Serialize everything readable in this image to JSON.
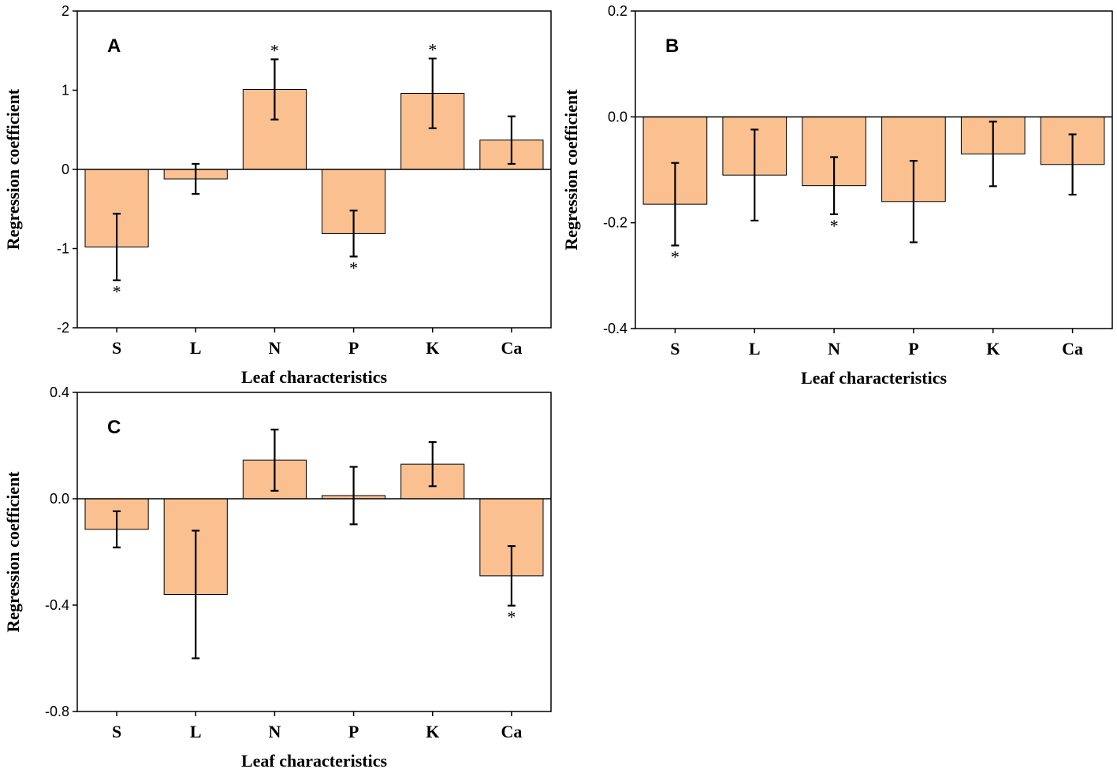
{
  "bar_color": "#fac090",
  "chart_data": [
    {
      "type": "bar",
      "panel": "A",
      "categories": [
        "S",
        "L",
        "N",
        "P",
        "K",
        "Ca"
      ],
      "values": [
        -0.98,
        -0.12,
        1.01,
        -0.81,
        0.96,
        0.37
      ],
      "errors": [
        0.42,
        0.19,
        0.38,
        0.29,
        0.44,
        0.3
      ],
      "significant": [
        true,
        false,
        true,
        true,
        true,
        false
      ],
      "xlabel": "Leaf characteristics",
      "ylabel": "Regression coefficient",
      "ylim": [
        -2,
        2
      ],
      "yticks": [
        -2,
        -1,
        0,
        1,
        2
      ],
      "ytick_labels": [
        "-2",
        "-1",
        "0",
        "1",
        "2"
      ]
    },
    {
      "type": "bar",
      "panel": "B",
      "categories": [
        "S",
        "L",
        "N",
        "P",
        "K",
        "Ca"
      ],
      "values": [
        -0.165,
        -0.11,
        -0.13,
        -0.16,
        -0.07,
        -0.09
      ],
      "errors": [
        0.078,
        0.086,
        0.054,
        0.077,
        0.061,
        0.057
      ],
      "significant": [
        true,
        false,
        true,
        false,
        false,
        false
      ],
      "xlabel": "Leaf characteristics",
      "ylabel": "Regression coefficient",
      "ylim": [
        -0.4,
        0.2
      ],
      "yticks": [
        -0.4,
        -0.2,
        0.0,
        0.2
      ],
      "ytick_labels": [
        "-0.4",
        "-0.2",
        "0.0",
        "0.2"
      ]
    },
    {
      "type": "bar",
      "panel": "C",
      "categories": [
        "S",
        "L",
        "N",
        "P",
        "K",
        "Ca"
      ],
      "values": [
        -0.115,
        -0.36,
        0.145,
        0.012,
        0.13,
        -0.29
      ],
      "errors": [
        0.068,
        0.24,
        0.115,
        0.108,
        0.083,
        0.112
      ],
      "significant": [
        false,
        false,
        false,
        false,
        false,
        true
      ],
      "xlabel": "Leaf characteristics",
      "ylabel": "Regression coefficient",
      "ylim": [
        -0.8,
        0.4
      ],
      "yticks": [
        -0.8,
        -0.4,
        0.0,
        0.4
      ],
      "ytick_labels": [
        "-0.8",
        "-0.4",
        "0.0",
        "0.4"
      ]
    }
  ]
}
